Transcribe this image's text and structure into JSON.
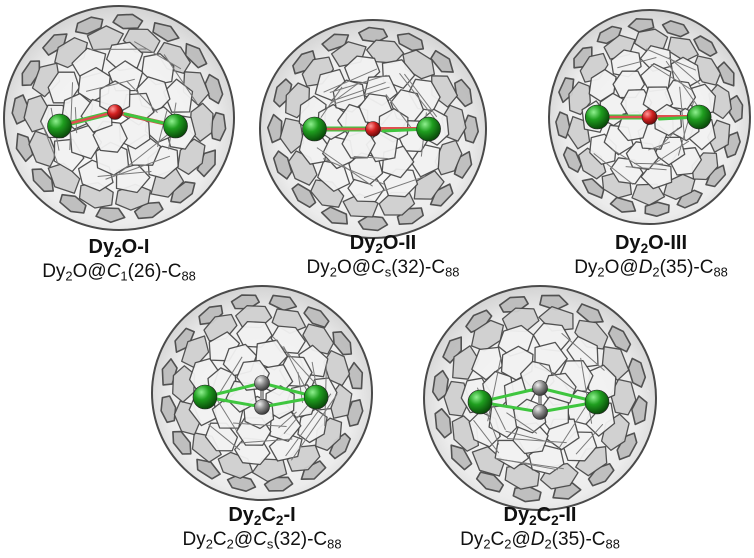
{
  "figure": {
    "panels": [
      {
        "name": {
          "base": "Dy",
          "sub1": "2",
          "mid": "O-I",
          "sub2": "",
          "tail": ""
        },
        "formula": {
          "a": "Dy",
          "a_sub": "2",
          "b": "O@",
          "sym": "C",
          "sym_sub": "1",
          "c": "(26)-C",
          "c_sub": "88"
        },
        "encaps": "Dy2O"
      },
      {
        "name": {
          "base": "Dy",
          "sub1": "2",
          "mid": "O-II",
          "sub2": "",
          "tail": ""
        },
        "formula": {
          "a": "Dy",
          "a_sub": "2",
          "b": "O@",
          "sym": "C",
          "sym_sub": "s",
          "c": "(32)-C",
          "c_sub": "88"
        },
        "encaps": "Dy2O"
      },
      {
        "name": {
          "base": "Dy",
          "sub1": "2",
          "mid": "O-III",
          "sub2": "",
          "tail": ""
        },
        "formula": {
          "a": "Dy",
          "a_sub": "2",
          "b": "O@",
          "sym": "D",
          "sym_sub": "2",
          "c": "(35)-C",
          "c_sub": "88"
        },
        "encaps": "Dy2O"
      },
      {
        "name": {
          "base": "Dy",
          "sub1": "2",
          "mid": "C",
          "sub2": "2",
          "tail": "-I"
        },
        "formula": {
          "a": "Dy",
          "a_sub": "2",
          "b": "C",
          "b_sub": "2",
          "b2": "@",
          "sym": "C",
          "sym_sub": "s",
          "c": "(32)-C",
          "c_sub": "88"
        },
        "encaps": "Dy2C2"
      },
      {
        "name": {
          "base": "Dy",
          "sub1": "2",
          "mid": "C",
          "sub2": "2",
          "tail": "-II"
        },
        "formula": {
          "a": "Dy",
          "a_sub": "2",
          "b": "C",
          "b_sub": "2",
          "b2": "@",
          "sym": "D",
          "sym_sub": "2",
          "c": "(35)-C",
          "c_sub": "88"
        },
        "encaps": "Dy2C2"
      }
    ],
    "colors": {
      "cage_face": "#d4d4d4",
      "cage_edge": "#4a4a4a",
      "cage_light": "#f2f2f2",
      "dy_atom": "#1a8f1a",
      "oxygen_atom": "#d21f1f",
      "carbon_atom": "#8a8a8a",
      "bond_green": "#3fc63f",
      "bond_red": "#e05050"
    }
  }
}
